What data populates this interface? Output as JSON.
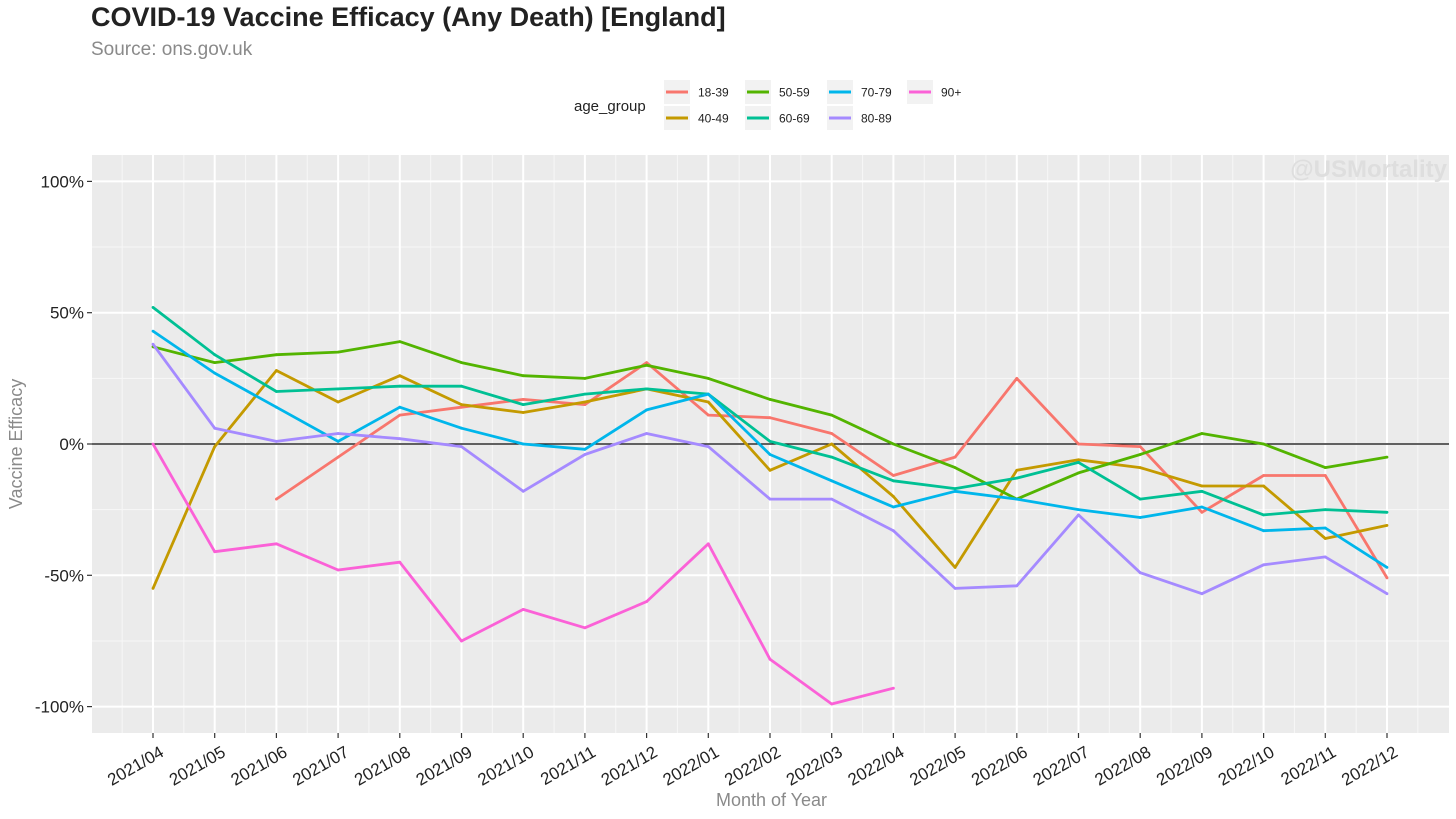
{
  "header": {
    "title": "COVID-19 Vaccine Efficacy (Any Death) [England]",
    "subtitle": "Source: ons.gov.uk"
  },
  "watermark": "@USMortality",
  "chart_data": {
    "type": "line",
    "xlabel": "Month of Year",
    "ylabel": "Vaccine Efficacy",
    "x": [
      "2021/04",
      "2021/05",
      "2021/06",
      "2021/07",
      "2021/08",
      "2021/09",
      "2021/10",
      "2021/11",
      "2021/12",
      "2022/01",
      "2022/02",
      "2022/03",
      "2022/04",
      "2022/05",
      "2022/06",
      "2022/07",
      "2022/08",
      "2022/09",
      "2022/10",
      "2022/11",
      "2022/12"
    ],
    "ylim": [
      -110,
      110
    ],
    "yticks": [
      100,
      50,
      0,
      -50,
      -100
    ],
    "ytick_labels": [
      "100%",
      "50%",
      "0%",
      "-50%",
      "-100%"
    ],
    "grid": true,
    "zero_line": true,
    "legend": {
      "title": "age_group",
      "position": "top"
    },
    "series": [
      {
        "name": "18-39",
        "color": "#F8766D",
        "values": [
          null,
          null,
          -21,
          -5,
          11,
          14,
          17,
          15,
          31,
          11,
          10,
          4,
          -12,
          -5,
          25,
          0,
          -1,
          -26,
          -12,
          -12,
          -51
        ]
      },
      {
        "name": "40-49",
        "color": "#C49A00",
        "values": [
          -55,
          -1,
          28,
          16,
          26,
          15,
          12,
          16,
          21,
          16,
          -10,
          0,
          -20,
          -47,
          -10,
          -6,
          -9,
          -16,
          -16,
          -36,
          -31
        ]
      },
      {
        "name": "50-59",
        "color": "#53B400",
        "values": [
          37,
          31,
          34,
          35,
          39,
          31,
          26,
          25,
          30,
          25,
          17,
          11,
          0,
          -9,
          -21,
          -11,
          -4,
          4,
          0,
          -9,
          -5
        ]
      },
      {
        "name": "60-69",
        "color": "#00C094",
        "values": [
          52,
          34,
          20,
          21,
          22,
          22,
          15,
          19,
          21,
          19,
          1,
          -5,
          -14,
          -17,
          -13,
          -7,
          -21,
          -18,
          -27,
          -25,
          -26
        ]
      },
      {
        "name": "70-79",
        "color": "#00B6EB",
        "values": [
          43,
          27,
          14,
          1,
          14,
          6,
          0,
          -2,
          13,
          19,
          -4,
          -14,
          -24,
          -18,
          -21,
          -25,
          -28,
          -24,
          -33,
          -32,
          -47
        ]
      },
      {
        "name": "80-89",
        "color": "#A58AFF",
        "values": [
          38,
          6,
          1,
          4,
          2,
          -1,
          -18,
          -4,
          4,
          -1,
          -21,
          -21,
          -33,
          -55,
          -54,
          -27,
          -49,
          -57,
          -46,
          -43,
          -57
        ]
      },
      {
        "name": "90+",
        "color": "#FB61D7",
        "values": [
          0,
          -41,
          -38,
          -48,
          -45,
          -75,
          -63,
          -70,
          -60,
          -38,
          -82,
          -99,
          -93,
          null,
          null,
          null,
          null,
          null,
          null,
          null,
          null
        ]
      }
    ]
  }
}
